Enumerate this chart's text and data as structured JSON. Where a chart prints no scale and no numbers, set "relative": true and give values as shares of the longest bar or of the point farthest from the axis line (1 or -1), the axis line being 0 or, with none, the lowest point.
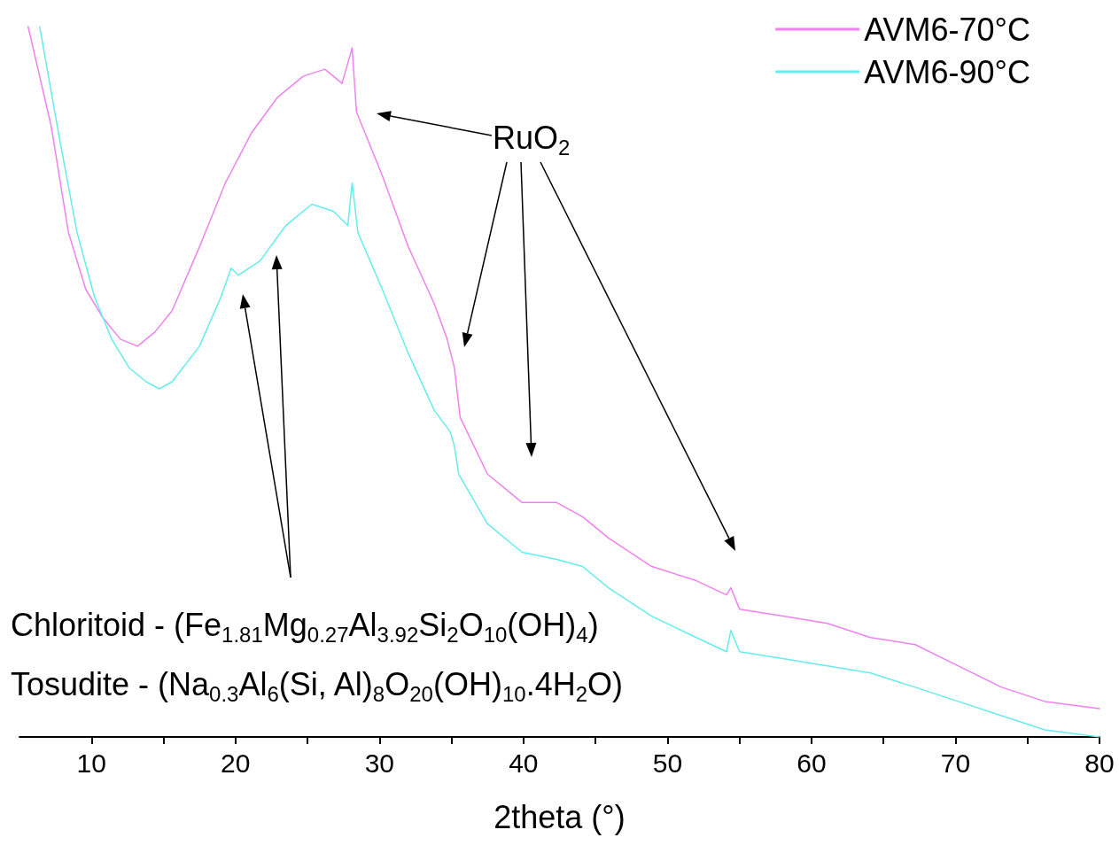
{
  "chart_data": {
    "type": "line",
    "relative": true,
    "xlabel": "2theta (°)",
    "xlim": [
      5,
      80
    ],
    "xticks": [
      10,
      {
        "value": 15,
        "label": null
      },
      20,
      {
        "value": 25,
        "label": null
      },
      30,
      {
        "value": 35,
        "label": null
      },
      40,
      {
        "value": 45,
        "label": null
      },
      50,
      {
        "value": 55,
        "label": null
      },
      60,
      {
        "value": 65,
        "label": null
      },
      70,
      {
        "value": 75,
        "label": null
      },
      80
    ],
    "grid": false,
    "legend": "top right",
    "marker": "none",
    "line_style": "solid",
    "annotations": [
      "RuO$_{2}$",
      "Chloritoid - (Fe$_{1.81}$Mg$_{0.27}$Al$_{3.92}$Si$_{2}$O$_{10}$(OH)$_{4}$)",
      "Tosudite - (Na$_{0.3}$Al$_{6}$(Si, Al)$_{8}$O$_{20}$(OH)$_{10}$.4H$_{2}$O)"
    ],
    "series": [
      {
        "name": "AVM6-70°C",
        "color": "#ee82ee",
        "x": [
          5.6,
          7.2,
          8.4,
          9.6,
          10.8,
          12.0,
          13.2,
          14.4,
          15.6,
          17.5,
          19.3,
          21.1,
          22.9,
          24.7,
          26.2,
          27.4,
          28.1,
          28.4,
          30.2,
          32.0,
          33.8,
          34.7,
          35.2,
          35.6,
          37.5,
          39.9,
          42.3,
          44.1,
          45.9,
          48.9,
          52.0,
          54.1,
          54.4,
          55.0,
          58.1,
          61.1,
          64.1,
          67.2,
          70.2,
          73.2,
          76.2,
          80.0
        ],
        "values": [
          1.0,
          0.86,
          0.71,
          0.63,
          0.59,
          0.56,
          0.55,
          0.57,
          0.6,
          0.69,
          0.78,
          0.85,
          0.9,
          0.93,
          0.94,
          0.92,
          0.97,
          0.88,
          0.79,
          0.69,
          0.61,
          0.56,
          0.52,
          0.45,
          0.37,
          0.33,
          0.33,
          0.31,
          0.28,
          0.24,
          0.22,
          0.2,
          0.21,
          0.18,
          0.17,
          0.16,
          0.14,
          0.13,
          0.1,
          0.07,
          0.05,
          0.04
        ]
      },
      {
        "name": "AVM6-90°C",
        "color": "#66ecec",
        "x": [
          6.4,
          7.8,
          9.0,
          10.2,
          11.4,
          12.6,
          13.8,
          14.7,
          15.6,
          17.5,
          19.0,
          19.7,
          20.2,
          21.7,
          23.5,
          25.3,
          26.8,
          27.8,
          28.1,
          28.5,
          30.2,
          32.0,
          33.8,
          34.9,
          35.2,
          35.5,
          37.5,
          39.9,
          42.3,
          44.1,
          45.9,
          48.9,
          52.0,
          54.1,
          54.4,
          55.0,
          58.1,
          61.1,
          64.1,
          67.2,
          70.2,
          73.2,
          76.2,
          80.0
        ],
        "values": [
          1.0,
          0.84,
          0.71,
          0.62,
          0.56,
          0.52,
          0.5,
          0.49,
          0.5,
          0.55,
          0.62,
          0.66,
          0.65,
          0.67,
          0.72,
          0.75,
          0.74,
          0.72,
          0.78,
          0.71,
          0.63,
          0.54,
          0.46,
          0.43,
          0.41,
          0.37,
          0.3,
          0.26,
          0.25,
          0.24,
          0.21,
          0.17,
          0.14,
          0.12,
          0.15,
          0.12,
          0.11,
          0.1,
          0.09,
          0.07,
          0.05,
          0.03,
          0.01,
          0.0
        ]
      }
    ]
  }
}
